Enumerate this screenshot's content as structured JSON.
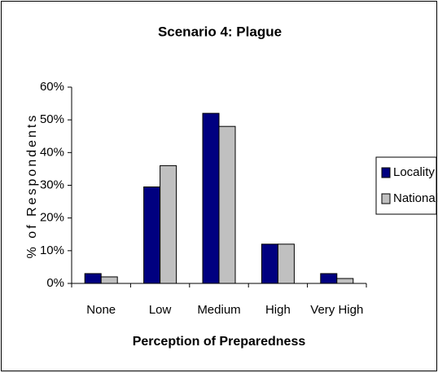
{
  "chart_data": {
    "type": "bar",
    "title": "Scenario 4: Plague",
    "xlabel": "Perception of Preparedness",
    "ylabel": "% of Respondents",
    "categories": [
      "None",
      "Low",
      "Medium",
      "High",
      "Very High"
    ],
    "series": [
      {
        "name": "Locality",
        "color": "#000080",
        "values": [
          3,
          29.5,
          52,
          12,
          3
        ]
      },
      {
        "name": "National",
        "color": "#c0c0c0",
        "values": [
          2,
          36,
          48,
          12,
          1.5
        ]
      }
    ],
    "ylim": [
      0,
      60
    ],
    "yticks": [
      {
        "value": 0,
        "label": "0%"
      },
      {
        "value": 10,
        "label": "10%"
      },
      {
        "value": 20,
        "label": "20%"
      },
      {
        "value": 30,
        "label": "30%"
      },
      {
        "value": 40,
        "label": "40%"
      },
      {
        "value": 50,
        "label": "50%"
      },
      {
        "value": 60,
        "label": "60%"
      }
    ],
    "grid": false,
    "legend": "right"
  }
}
